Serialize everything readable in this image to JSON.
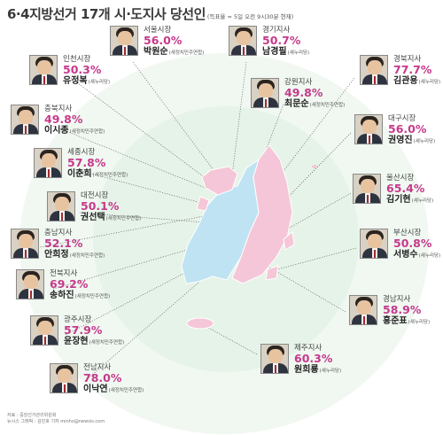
{
  "header": {
    "title": "6·4지방선거 17개 시·도지사 당선인",
    "subtitle": "(득표율 = 5일 오전 9시30분 현재)"
  },
  "colors": {
    "percent": "#c6398b",
    "map_pink": "#f5c6d8",
    "map_blue": "#bfe3f2",
    "bg_green": "#e3f2e5"
  },
  "winners": [
    {
      "id": "seoul",
      "region": "서울시장",
      "percent": "56.0%",
      "name": "박원순",
      "party": "(새정치민주연합)"
    },
    {
      "id": "gyeonggi",
      "region": "경기지사",
      "percent": "50.7%",
      "name": "남경필",
      "party": "(새누리당)"
    },
    {
      "id": "incheon",
      "region": "인천시장",
      "percent": "50.3%",
      "name": "유정복",
      "party": "(새누리당)"
    },
    {
      "id": "gyeongbuk",
      "region": "경북지사",
      "percent": "77.7%",
      "name": "김관용",
      "party": "(새누리당)"
    },
    {
      "id": "gangwon",
      "region": "강원지사",
      "percent": "49.8%",
      "name": "최문순",
      "party": "(새정치민주연합)"
    },
    {
      "id": "chungbuk",
      "region": "충북지사",
      "percent": "49.8%",
      "name": "이시종",
      "party": "(새정치민주연합)"
    },
    {
      "id": "daegu",
      "region": "대구시장",
      "percent": "56.0%",
      "name": "권영진",
      "party": "(새누리당)"
    },
    {
      "id": "sejong",
      "region": "세종시장",
      "percent": "57.8%",
      "name": "이춘희",
      "party": "(새정치민주연합)"
    },
    {
      "id": "ulsan",
      "region": "울산시장",
      "percent": "65.4%",
      "name": "김기현",
      "party": "(새누리당)"
    },
    {
      "id": "daejeon",
      "region": "대전시장",
      "percent": "50.1%",
      "name": "권선택",
      "party": "(새정치민주연합)"
    },
    {
      "id": "chungnam",
      "region": "충남지사",
      "percent": "52.1%",
      "name": "안희정",
      "party": "(새정치민주연합)"
    },
    {
      "id": "busan",
      "region": "부산시장",
      "percent": "50.8%",
      "name": "서병수",
      "party": "(새누리당)"
    },
    {
      "id": "jeonbuk",
      "region": "전북지사",
      "percent": "69.2%",
      "name": "송하진",
      "party": "(새정치민주연합)"
    },
    {
      "id": "gyeongnam",
      "region": "경남지사",
      "percent": "58.9%",
      "name": "홍준표",
      "party": "(새누리당)"
    },
    {
      "id": "gwangju",
      "region": "광주시장",
      "percent": "57.9%",
      "name": "윤장현",
      "party": "(새정치민주연합)"
    },
    {
      "id": "jeju",
      "region": "제주지사",
      "percent": "60.3%",
      "name": "원희룡",
      "party": "(새누리당)"
    },
    {
      "id": "jeonnam",
      "region": "전남지사",
      "percent": "78.0%",
      "name": "이낙연",
      "party": "(새정치민주연합)"
    }
  ],
  "footer": {
    "source": "자료 : 중앙선거관리위원회",
    "credit": "뉴시스 그래픽 : 김민호 기자 minho@newsis.com"
  }
}
